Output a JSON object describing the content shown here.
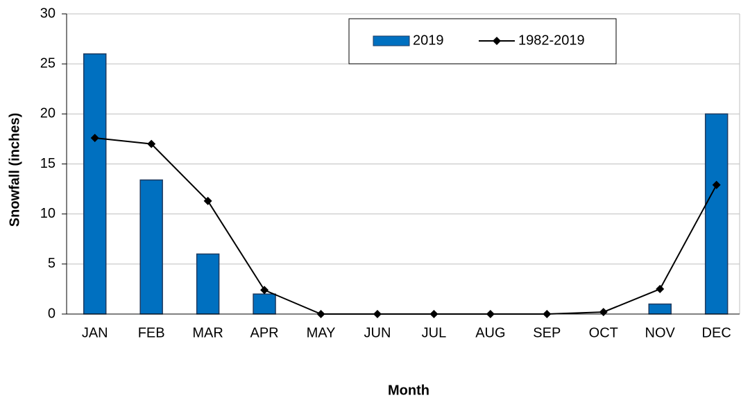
{
  "chart_data": {
    "type": "bar_line",
    "x_label": "Month",
    "y_label": "Snowfall (inches)",
    "categories": [
      "JAN",
      "FEB",
      "MAR",
      "APR",
      "MAY",
      "JUN",
      "JUL",
      "AUG",
      "SEP",
      "OCT",
      "NOV",
      "DEC"
    ],
    "series": [
      {
        "name": "2019",
        "type": "bar",
        "color": "#0070c0",
        "values": [
          26,
          13.4,
          6,
          2,
          0,
          0,
          0,
          0,
          0,
          0,
          1,
          20
        ]
      },
      {
        "name": "1982-2019",
        "type": "line",
        "color": "#000000",
        "values": [
          17.6,
          17,
          11.3,
          2.4,
          0,
          0,
          0,
          0,
          0,
          0.2,
          2.5,
          12.9
        ]
      }
    ],
    "ylim": [
      0,
      30
    ],
    "yticks": [
      0,
      5,
      10,
      15,
      20,
      25,
      30
    ],
    "grid": true,
    "legend": "top-right"
  }
}
